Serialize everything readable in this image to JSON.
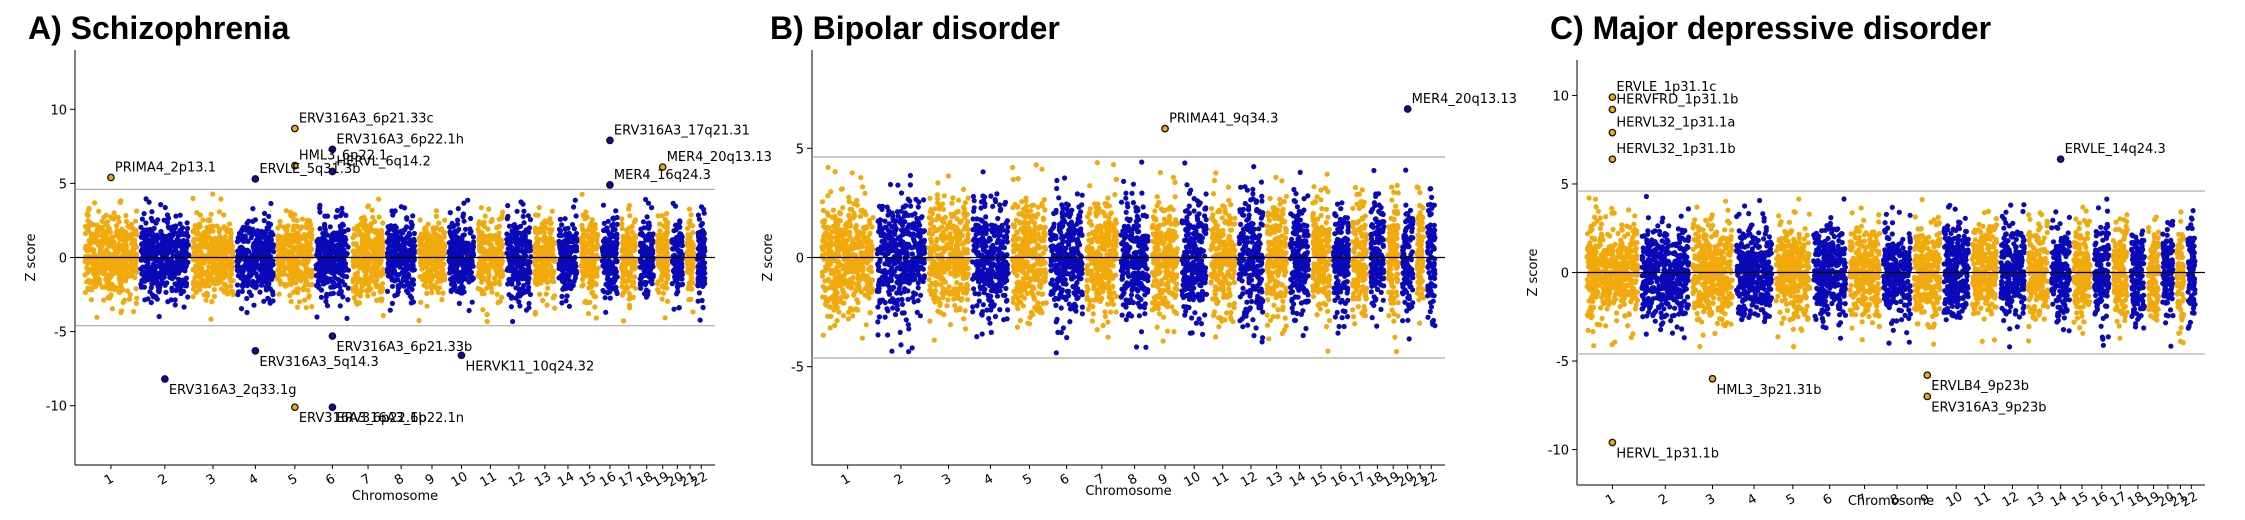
{
  "colors": {
    "odd": "#f2a90c",
    "even": "#0a09b8",
    "sig": "#111111",
    "threshold": "#a9a9a9",
    "zero": "#000000"
  },
  "chart_data": [
    {
      "type": "scatter",
      "title": "A) Schizophrenia",
      "xlabel": "Chromosome",
      "ylabel": "Z score",
      "ylim": [
        -14,
        14
      ],
      "yticks": [
        -10,
        -5,
        0,
        5,
        10
      ],
      "threshold": 4.6,
      "chromosomes": [
        "1",
        "2",
        "3",
        "4",
        "5",
        "6",
        "7",
        "8",
        "9",
        "10",
        "11",
        "12",
        "13",
        "14",
        "15",
        "16",
        "17",
        "18",
        "19",
        "20",
        "21",
        "22"
      ],
      "labels": [
        {
          "text": "PRIMA4_2p13.1",
          "chrom": 1,
          "z": 5.4
        },
        {
          "text": "ERV316A3_6p21.33c",
          "chrom": 5,
          "z": 8.7
        },
        {
          "text": "ERV316A3_6p22.1h",
          "chrom": 6,
          "z": 7.3
        },
        {
          "text": "ERV316A3_17q21.31",
          "chrom": 16,
          "z": 7.9
        },
        {
          "text": "MER4_20q13.13",
          "chrom": 19,
          "z": 6.1
        },
        {
          "text": "MER4_16q24.3",
          "chrom": 16,
          "z": 4.9
        },
        {
          "text": "HML3_6p22.1",
          "chrom": 5,
          "z": 6.2
        },
        {
          "text": "HERVL_6q14.2",
          "chrom": 6,
          "z": 5.8
        },
        {
          "text": "ERVLE_5q31.3b",
          "chrom": 4,
          "z": 5.3
        },
        {
          "text": "ERV316A3_6p21.33b",
          "chrom": 6,
          "z": -5.3
        },
        {
          "text": "ERV316A3_5q14.3",
          "chrom": 4,
          "z": -6.3
        },
        {
          "text": "HERVK11_10q24.32",
          "chrom": 10,
          "z": -6.6
        },
        {
          "text": "ERV316A3_2q33.1g",
          "chrom": 2,
          "z": -8.2
        },
        {
          "text": "ERV316A3_6p22.1b",
          "chrom": 5,
          "z": -10.1
        },
        {
          "text": "ERV316A3_6p22.1n",
          "chrom": 6,
          "z": -10.1
        }
      ]
    },
    {
      "type": "scatter",
      "title": "B) Bipolar disorder",
      "xlabel": "Chromosome",
      "ylabel": "Z score",
      "ylim": [
        -9.5,
        9.5
      ],
      "yticks": [
        -5,
        0,
        5
      ],
      "threshold": 4.6,
      "chromosomes": [
        "1",
        "2",
        "3",
        "4",
        "5",
        "6",
        "7",
        "8",
        "9",
        "10",
        "11",
        "12",
        "13",
        "14",
        "15",
        "16",
        "17",
        "18",
        "19",
        "20",
        "21",
        "22"
      ],
      "labels": [
        {
          "text": "PRIMA41_9q34.3",
          "chrom": 9,
          "z": 5.9
        },
        {
          "text": "MER4_20q13.13",
          "chrom": 20,
          "z": 6.8
        }
      ]
    },
    {
      "type": "scatter",
      "title": "C) Major depressive disorder",
      "xlabel": "Chromosome",
      "ylabel": "Z score",
      "ylim": [
        -12,
        12
      ],
      "yticks": [
        -10,
        -5,
        0,
        5,
        10
      ],
      "threshold": 4.6,
      "chromosomes": [
        "1",
        "2",
        "3",
        "4",
        "5",
        "6",
        "7",
        "8",
        "9",
        "10",
        "11",
        "12",
        "13",
        "14",
        "15",
        "16",
        "17",
        "18",
        "19",
        "20",
        "21",
        "22"
      ],
      "labels": [
        {
          "text": "ERVLE_1p31.1c",
          "chrom": 1,
          "z": 9.9
        },
        {
          "text": "HERVFRD_1p31.1b",
          "chrom": 1,
          "z": 9.2
        },
        {
          "text": "HERVL32_1p31.1a",
          "chrom": 1,
          "z": 7.9
        },
        {
          "text": "HERVL32_1p31.1b",
          "chrom": 1,
          "z": 6.4
        },
        {
          "text": "ERVLE_14q24.3",
          "chrom": 14,
          "z": 6.4
        },
        {
          "text": "HML3_3p21.31b",
          "chrom": 3,
          "z": -6.0
        },
        {
          "text": "ERVLB4_9p23b",
          "chrom": 9,
          "z": -5.8
        },
        {
          "text": "ERV316A3_9p23b",
          "chrom": 9,
          "z": -7.0
        },
        {
          "text": "HERVL_1p31.1b",
          "chrom": 1,
          "z": -9.6
        }
      ]
    }
  ]
}
